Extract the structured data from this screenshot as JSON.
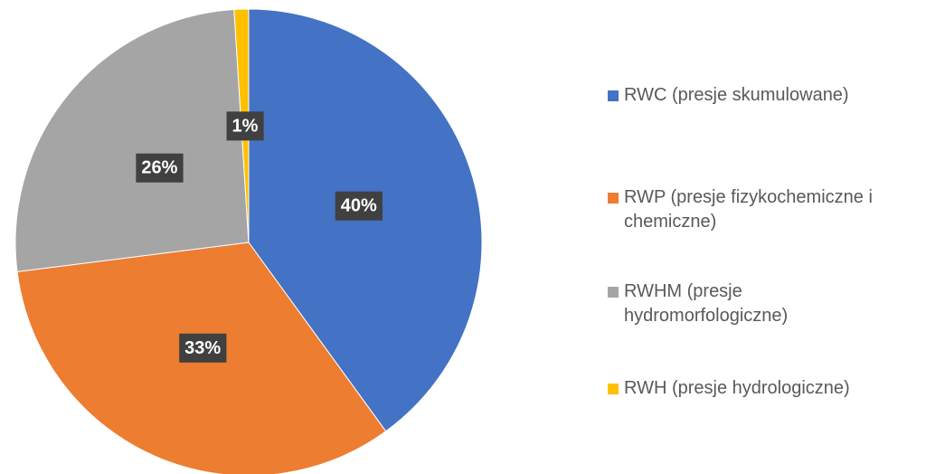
{
  "chart_data": {
    "type": "pie",
    "categories": [
      "RWC (presje skumulowane)",
      "RWP (presje fizykochemiczne i chemiczne)",
      "RWHM (presje hydromorfologiczne)",
      "RWH (presje hydrologiczne)"
    ],
    "values": [
      40,
      33,
      26,
      1
    ],
    "value_labels": [
      "40%",
      "33%",
      "26%",
      "1%"
    ],
    "colors": [
      "#4472c4",
      "#ed7d31",
      "#a5a5a5",
      "#ffc000"
    ]
  }
}
